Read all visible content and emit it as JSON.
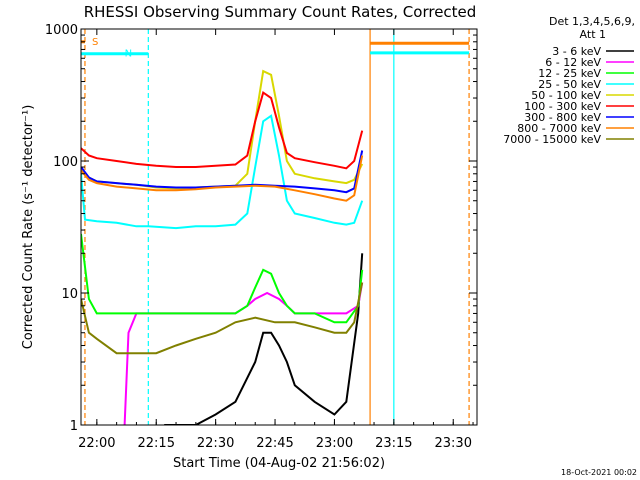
{
  "chart_data": {
    "type": "line",
    "title": "RHESSI Observing Summary Count Rates, Corrected",
    "xlabel": "Start Time (04-Aug-02 21:56:02)",
    "ylabel": "Corrected Count Rate (s⁻¹ detector⁻¹)",
    "y_scale": "log",
    "ylim": [
      1,
      1000
    ],
    "xlim": [
      "21:56",
      "23:36"
    ],
    "x_ticks": [
      "22:00",
      "22:15",
      "22:30",
      "22:45",
      "23:00",
      "23:15",
      "23:30"
    ],
    "y_ticks": [
      "1",
      "10",
      "100",
      "1000"
    ],
    "legend_header": [
      "Det 1,3,4,5,6,9,",
      "Att 1"
    ],
    "footer": "18-Oct-2021 00:02",
    "flags": [
      {
        "label": "S",
        "color": "#ff8000",
        "x_from": "21:56",
        "x_to": "21:57",
        "level": 800
      },
      {
        "label": "N",
        "color": "#00ffff",
        "x_from": "21:56",
        "x_to": "22:13",
        "level": 650
      },
      {
        "label": "",
        "color": "#ff8000",
        "x_from": "23:09",
        "x_to": "23:34",
        "level": 780
      },
      {
        "label": "",
        "color": "#00ffff",
        "x_from": "23:09",
        "x_to": "23:34",
        "level": 660
      }
    ],
    "markers": [
      {
        "color": "#ff8000",
        "x": "21:57",
        "style": "dashed"
      },
      {
        "color": "#00ffff",
        "x": "22:13",
        "style": "dashed"
      },
      {
        "color": "#ff8000",
        "x": "23:09",
        "style": "solid"
      },
      {
        "color": "#00ffff",
        "x": "23:15",
        "style": "solid"
      },
      {
        "color": "#ff8000",
        "x": "23:34",
        "style": "dashed"
      }
    ],
    "series": [
      {
        "name": "3 - 6 keV",
        "color": "#000000",
        "x": [
          "22:17",
          "22:25",
          "22:30",
          "22:35",
          "22:40",
          "22:42",
          "22:44",
          "22:46",
          "22:48",
          "22:50",
          "22:55",
          "23:00",
          "23:03",
          "23:06",
          "23:07"
        ],
        "y": [
          1,
          1,
          1.2,
          1.5,
          3,
          5,
          5,
          4,
          3,
          2,
          1.5,
          1.2,
          1.5,
          7,
          20
        ]
      },
      {
        "name": "6 - 12 keV",
        "color": "#ff00ff",
        "x": [
          "22:07",
          "22:08",
          "22:10",
          "22:15",
          "22:20",
          "22:25",
          "22:30",
          "22:35",
          "22:38",
          "22:40",
          "22:43",
          "22:46",
          "22:48",
          "22:50",
          "22:55",
          "23:00",
          "23:03",
          "23:06",
          "23:07"
        ],
        "y": [
          1,
          5,
          7,
          7,
          7,
          7,
          7,
          7,
          8,
          9,
          10,
          9,
          8,
          7,
          7,
          7,
          7,
          8,
          12
        ]
      },
      {
        "name": "12 - 25 keV",
        "color": "#00ff00",
        "x": [
          "21:56",
          "21:58",
          "22:00",
          "22:05",
          "22:10",
          "22:15",
          "22:20",
          "22:25",
          "22:30",
          "22:35",
          "22:38",
          "22:40",
          "22:42",
          "22:44",
          "22:46",
          "22:48",
          "22:50",
          "22:55",
          "23:00",
          "23:03",
          "23:06",
          "23:07"
        ],
        "y": [
          28,
          9,
          7,
          7,
          7,
          7,
          7,
          7,
          7,
          7,
          8,
          11,
          15,
          14,
          10,
          8,
          7,
          7,
          6,
          6,
          8,
          15
        ]
      },
      {
        "name": "25 - 50 keV",
        "color": "#00ffff",
        "x": [
          "21:56",
          "21:57",
          "22:00",
          "22:05",
          "22:10",
          "22:13",
          "22:20",
          "22:25",
          "22:30",
          "22:35",
          "22:38",
          "22:40",
          "22:42",
          "22:44",
          "22:46",
          "22:48",
          "22:50",
          "22:55",
          "23:00",
          "23:03",
          "23:05",
          "23:07"
        ],
        "y": [
          80,
          36,
          35,
          34,
          32,
          32,
          31,
          32,
          32,
          33,
          40,
          90,
          200,
          220,
          110,
          50,
          40,
          37,
          34,
          33,
          34,
          50
        ]
      },
      {
        "name": "50 - 100 keV",
        "color": "#d8d800",
        "x": [
          "21:56",
          "21:58",
          "22:00",
          "22:05",
          "22:10",
          "22:15",
          "22:20",
          "22:25",
          "22:30",
          "22:35",
          "22:38",
          "22:40",
          "22:42",
          "22:44",
          "22:46",
          "22:48",
          "22:50",
          "22:55",
          "23:00",
          "23:03",
          "23:05",
          "23:07"
        ],
        "y": [
          85,
          75,
          70,
          68,
          66,
          63,
          62,
          63,
          64,
          65,
          80,
          200,
          480,
          450,
          220,
          100,
          80,
          74,
          70,
          68,
          72,
          95
        ]
      },
      {
        "name": "100 - 300 keV",
        "color": "#ff0000",
        "x": [
          "21:56",
          "21:58",
          "22:00",
          "22:05",
          "22:10",
          "22:15",
          "22:20",
          "22:25",
          "22:30",
          "22:35",
          "22:38",
          "22:40",
          "22:42",
          "22:44",
          "22:46",
          "22:48",
          "22:50",
          "22:55",
          "23:00",
          "23:03",
          "23:05",
          "23:07"
        ],
        "y": [
          125,
          110,
          105,
          100,
          95,
          92,
          90,
          90,
          92,
          94,
          110,
          200,
          330,
          300,
          180,
          115,
          105,
          98,
          92,
          88,
          100,
          170
        ]
      },
      {
        "name": "300 - 800 keV",
        "color": "#0000ff",
        "x": [
          "21:56",
          "21:58",
          "22:00",
          "22:05",
          "22:10",
          "22:15",
          "22:20",
          "22:25",
          "22:30",
          "22:35",
          "22:40",
          "22:45",
          "22:50",
          "22:55",
          "23:00",
          "23:03",
          "23:05",
          "23:07"
        ],
        "y": [
          90,
          75,
          70,
          68,
          66,
          64,
          63,
          63,
          64,
          65,
          66,
          65,
          64,
          62,
          60,
          58,
          62,
          120
        ]
      },
      {
        "name": "800 - 7000 keV",
        "color": "#ff8000",
        "x": [
          "21:56",
          "21:58",
          "22:00",
          "22:05",
          "22:10",
          "22:15",
          "22:20",
          "22:25",
          "22:30",
          "22:35",
          "22:40",
          "22:45",
          "22:50",
          "22:55",
          "23:00",
          "23:03",
          "23:05",
          "23:07"
        ],
        "y": [
          85,
          72,
          68,
          64,
          62,
          60,
          60,
          61,
          63,
          64,
          65,
          64,
          60,
          56,
          52,
          50,
          55,
          110
        ]
      },
      {
        "name": "7000 - 15000 keV",
        "color": "#808000",
        "x": [
          "21:56",
          "21:58",
          "22:00",
          "22:05",
          "22:10",
          "22:15",
          "22:20",
          "22:25",
          "22:30",
          "22:35",
          "22:40",
          "22:45",
          "22:50",
          "22:55",
          "23:00",
          "23:03",
          "23:05",
          "23:07"
        ],
        "y": [
          9,
          5,
          4.5,
          3.5,
          3.5,
          3.5,
          4,
          4.5,
          5,
          6,
          6.5,
          6,
          6,
          5.5,
          5,
          5,
          6,
          12
        ]
      }
    ]
  }
}
